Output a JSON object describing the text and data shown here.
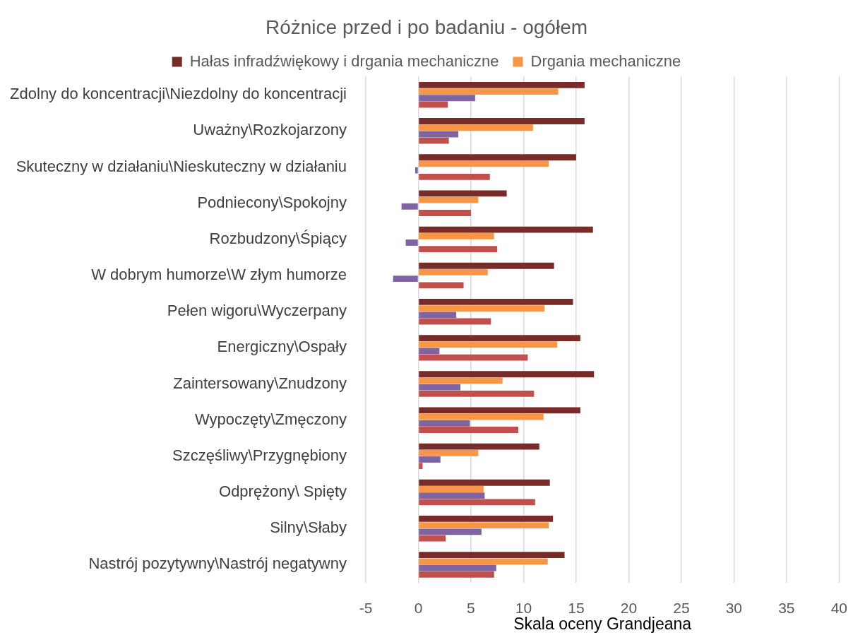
{
  "chart_data": {
    "type": "bar",
    "orientation": "horizontal",
    "title": "Różnice przed i po badaniu - ogółem",
    "xlabel": "Skala oceny Grandjeana",
    "categories": [
      "Zdolny do koncentracji\\Niezdolny do koncentracji",
      "Uważny\\Rozkojarzony",
      "Skuteczny w działaniu\\Nieskuteczny w działaniu",
      "Podniecony\\Spokojny",
      "Rozbudzony\\Śpiący",
      "W dobrym humorze\\W złym humorze",
      "Pełen wigoru\\Wyczerpany",
      "Energiczny\\Ospały",
      "Zaintersowany\\Znudzony",
      "Wypoczęty\\Zmęczony",
      "Szczęśliwy\\Przygnębiony",
      "Odprężony\\ Spięty",
      "Silny\\Słaby",
      "Nastrój pozytywny\\Nastrój negatywny"
    ],
    "series": [
      {
        "name": "Hałas infradźwiękowy i drgania mechaniczne",
        "color": "#772c2a",
        "values": [
          15.8,
          15.8,
          15.0,
          8.4,
          16.6,
          12.9,
          14.7,
          15.4,
          16.7,
          15.4,
          11.5,
          12.5,
          12.8,
          13.9
        ]
      },
      {
        "name": "Drgania mechaniczne",
        "color": "#f79646",
        "values": [
          13.3,
          10.9,
          12.4,
          5.7,
          7.2,
          6.6,
          12.0,
          13.2,
          8.0,
          11.9,
          5.7,
          6.2,
          12.4,
          12.3
        ]
      },
      {
        "color": "#8064a2",
        "values": [
          5.4,
          3.8,
          -0.3,
          -1.6,
          -1.2,
          -2.4,
          3.6,
          2.0,
          4.0,
          4.9,
          2.1,
          6.3,
          6.0,
          7.4
        ]
      },
      {
        "color": "#c0504d",
        "values": [
          2.8,
          2.9,
          6.8,
          5.0,
          7.5,
          4.3,
          6.9,
          10.4,
          11.0,
          9.5,
          0.4,
          11.1,
          2.6,
          7.2
        ]
      }
    ],
    "xlim": [
      -5,
      40
    ],
    "xticks": [
      -5,
      0,
      5,
      10,
      15,
      20,
      25,
      30,
      35,
      40
    ],
    "grid": "x",
    "legend": "top"
  }
}
